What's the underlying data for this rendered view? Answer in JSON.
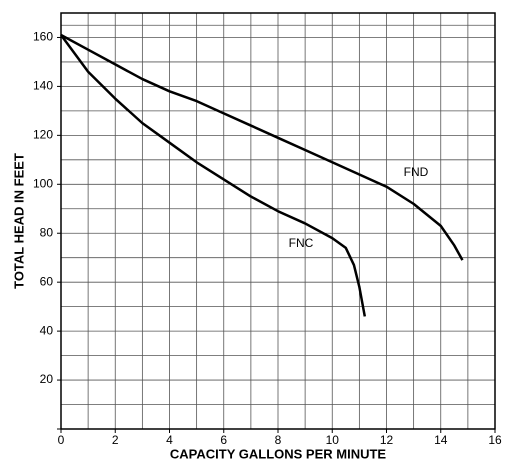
{
  "chart_data": {
    "type": "line",
    "x_label": "CAPACITY GALLONS PER MINUTE",
    "y_label": "TOTAL HEAD IN FEET",
    "xlim": [
      0,
      16
    ],
    "xticks": [
      0,
      2,
      4,
      6,
      8,
      10,
      12,
      14,
      16
    ],
    "ylim": [
      0,
      170
    ],
    "yticks": [
      20,
      40,
      60,
      80,
      100,
      120,
      140,
      160
    ],
    "grid": true,
    "series": [
      {
        "name": "FND",
        "color": "#000000",
        "x": [
          0,
          1,
          2,
          3,
          4,
          5,
          6,
          7,
          8,
          9,
          10,
          11,
          12,
          13,
          14,
          14.5,
          14.8
        ],
        "values": [
          161,
          155,
          149,
          143,
          138,
          134,
          129,
          124,
          119,
          114,
          109,
          104,
          99,
          92,
          83,
          75,
          69
        ]
      },
      {
        "name": "FNC",
        "color": "#000000",
        "x": [
          0,
          1,
          2,
          3,
          4,
          5,
          6,
          7,
          8,
          9,
          10,
          10.5,
          10.8,
          11,
          11.2
        ],
        "values": [
          161,
          146,
          135,
          125,
          117,
          109,
          102,
          95,
          89,
          84,
          78,
          74,
          67,
          58,
          46
        ]
      }
    ]
  }
}
